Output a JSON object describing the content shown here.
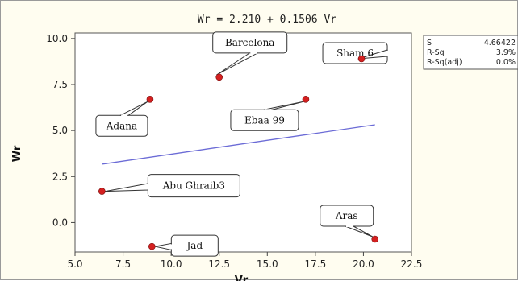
{
  "chart_data": {
    "type": "scatter",
    "title": "Wr = 2.210 + 0.1506 Vr",
    "xlabel": "Vr",
    "ylabel": "Wr",
    "xlim": [
      5.0,
      22.5
    ],
    "ylim": [
      -1.6,
      10.3
    ],
    "x_ticks": [
      "5.0",
      "7.5",
      "10.0",
      "12.5",
      "15.0",
      "17.5",
      "20.0",
      "22.5"
    ],
    "y_ticks": [
      "10.0",
      "7.5",
      "5.0",
      "2.5",
      "0.0"
    ],
    "x_tick_values": [
      5.0,
      7.5,
      10.0,
      12.5,
      15.0,
      17.5,
      20.0,
      22.5
    ],
    "y_tick_values": [
      10.0,
      7.5,
      5.0,
      2.5,
      0.0
    ],
    "grid": false,
    "points": [
      {
        "label": "Barcelona",
        "x": 12.5,
        "y": 7.9
      },
      {
        "label": "Sham 6",
        "x": 19.9,
        "y": 8.9
      },
      {
        "label": "Adana",
        "x": 8.9,
        "y": 6.7
      },
      {
        "label": "Ebaa 99",
        "x": 17.0,
        "y": 6.7
      },
      {
        "label": "Abu Ghraib3",
        "x": 6.4,
        "y": 1.7
      },
      {
        "label": "Aras",
        "x": 20.6,
        "y": -0.9
      },
      {
        "label": "Jad",
        "x": 9.0,
        "y": -1.3
      }
    ],
    "fit_line": {
      "intercept": 2.21,
      "slope": 0.1506,
      "x_range": [
        6.4,
        20.6
      ]
    },
    "stats": [
      {
        "label": "S",
        "value": "4.66422"
      },
      {
        "label": "R-Sq",
        "value": "3.9%"
      },
      {
        "label": "R-Sq(adj)",
        "value": "0.0%"
      }
    ],
    "colors": {
      "points": "#d42020",
      "fit_line": "#6b6bd6",
      "plot_background": "#ffffff",
      "frame_background": "#fffdf0"
    }
  }
}
